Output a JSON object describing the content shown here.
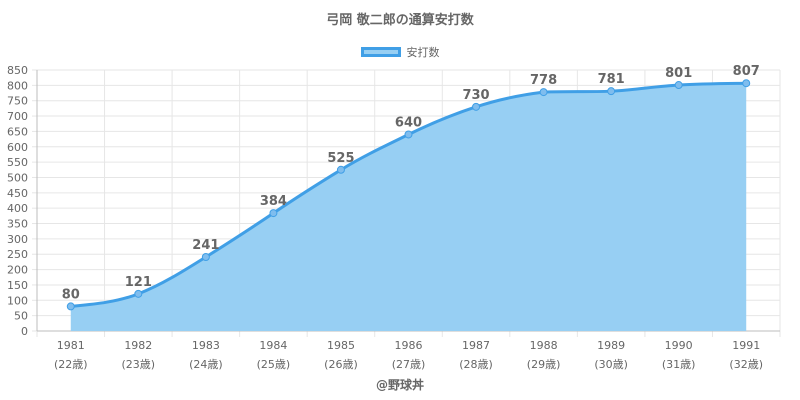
{
  "chart_data": {
    "type": "area",
    "title": "弓岡 敬二郎の通算安打数",
    "legend": "安打数",
    "legend_position": "top",
    "grid": true,
    "categories": [
      "1981",
      "1982",
      "1983",
      "1984",
      "1985",
      "1986",
      "1987",
      "1988",
      "1989",
      "1990",
      "1991"
    ],
    "category_sublabels": [
      "(22歳)",
      "(23歳)",
      "(24歳)",
      "(25歳)",
      "(26歳)",
      "(27歳)",
      "(28歳)",
      "(29歳)",
      "(30歳)",
      "(31歳)",
      "(32歳)"
    ],
    "series": [
      {
        "name": "安打数",
        "values": [
          80,
          121,
          241,
          384,
          525,
          640,
          730,
          778,
          781,
          801,
          807
        ]
      }
    ],
    "ylim": [
      0,
      850
    ],
    "ytick_step": 50,
    "colors": {
      "line": "#409fe6",
      "fill": "#97cff3",
      "text": "#666666",
      "grid": "#e6e6e6"
    }
  },
  "credit": "@野球丼"
}
